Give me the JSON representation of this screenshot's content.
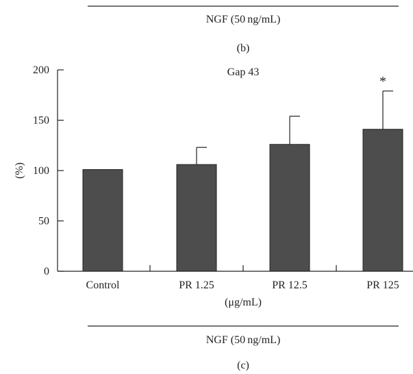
{
  "top_section": {
    "treatment_label": "NGF (50 ng/mL)",
    "panel_label": "(b)"
  },
  "chart_data": {
    "type": "bar",
    "title": "Gap 43",
    "ylabel": "(%)",
    "xlabel": "(μg/mL)",
    "ylim": [
      0,
      200
    ],
    "yticks": [
      0,
      50,
      100,
      150,
      200
    ],
    "categories": [
      "Control",
      "PR 1.25",
      "PR 12.5",
      "PR 125"
    ],
    "values": [
      101,
      106,
      126,
      141
    ],
    "error_upper": [
      0,
      17,
      28,
      38
    ],
    "significance": [
      "",
      "",
      "",
      "*"
    ],
    "bar_color": "#4d4d4d",
    "grid": false,
    "legend": "none"
  },
  "bottom_section": {
    "treatment_label": "NGF (50 ng/mL)",
    "panel_label": "(c)"
  }
}
